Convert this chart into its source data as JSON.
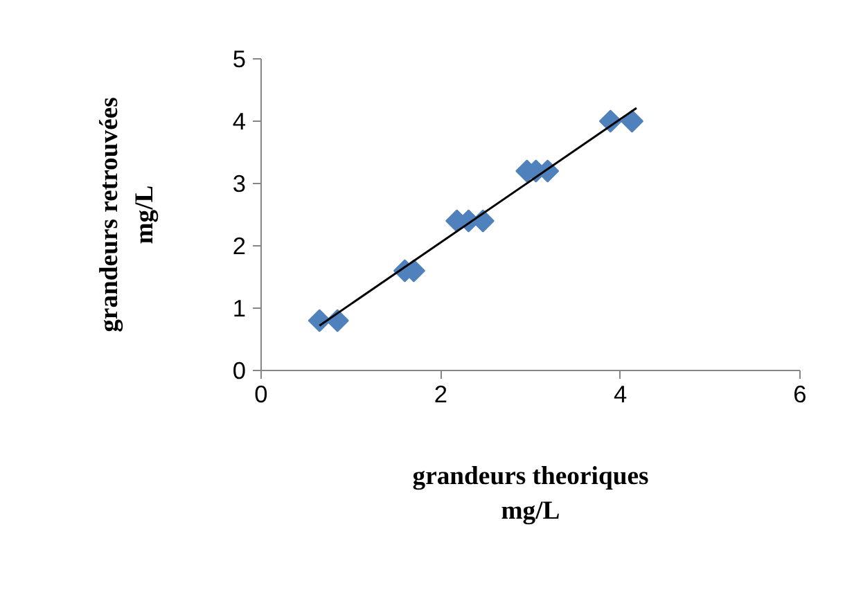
{
  "chart_data": {
    "type": "scatter",
    "xlabel": "grandeurs theoriques\nmg/L",
    "ylabel": "grandeurs retrouvées\nmg/L",
    "xlim": [
      0,
      6
    ],
    "ylim": [
      0,
      5
    ],
    "xticks": [
      0,
      2,
      4,
      6
    ],
    "yticks": [
      0,
      1,
      2,
      3,
      4,
      5
    ],
    "grid": false,
    "marker": "diamond",
    "series": [
      {
        "color": "#4f81bd",
        "x": [
          0.65,
          0.85,
          1.6,
          1.7,
          2.18,
          2.31,
          2.47,
          2.96,
          3.06,
          3.19,
          3.89,
          4.13
        ],
        "values": [
          0.8,
          0.8,
          1.6,
          1.6,
          2.4,
          2.4,
          2.4,
          3.2,
          3.2,
          3.2,
          4.0,
          4.0
        ]
      },
      {
        "type": "line",
        "marker": "none",
        "color": "#000000",
        "x": [
          0.65,
          4.18
        ],
        "values": [
          0.72,
          4.21
        ]
      }
    ]
  }
}
